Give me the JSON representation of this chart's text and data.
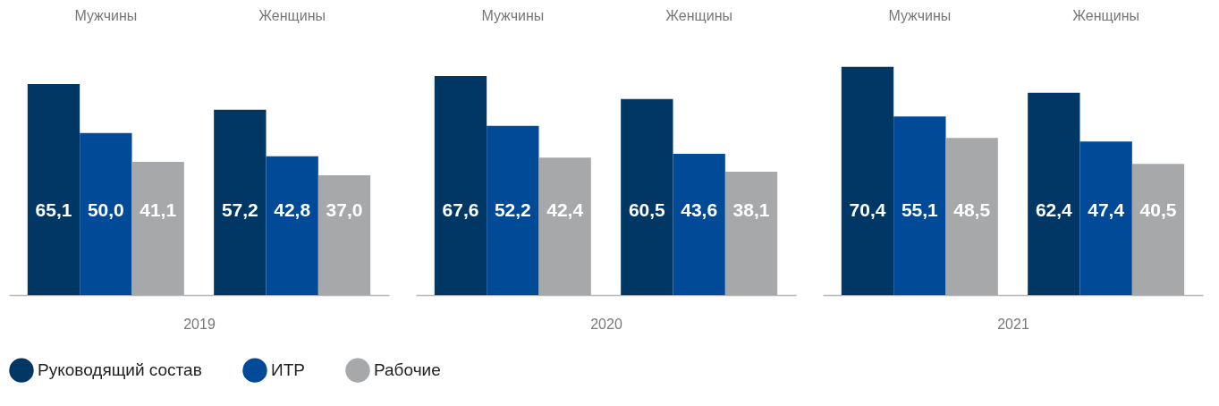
{
  "chart_data": [
    {
      "type": "bar",
      "xlabel": "2019",
      "categories": [
        "Мужчины",
        "Женщины"
      ],
      "legend": "bottom",
      "series": [
        {
          "name": "Руководящий состав",
          "color": "#003764",
          "values": [
            65.1,
            57.2
          ],
          "value_labels": [
            "65,1",
            "57,2"
          ]
        },
        {
          "name": "ИТР",
          "color": "#004a98",
          "values": [
            50.0,
            42.8
          ],
          "value_labels": [
            "50,0",
            "42,8"
          ]
        },
        {
          "name": "Рабочие",
          "color": "#a7a8aa",
          "values": [
            41.1,
            37.0
          ],
          "value_labels": [
            "41,1",
            "37,0"
          ]
        }
      ]
    },
    {
      "type": "bar",
      "xlabel": "2020",
      "categories": [
        "Мужчины",
        "Женщины"
      ],
      "series": [
        {
          "color": "#003764",
          "values": [
            67.6,
            60.5
          ],
          "value_labels": [
            "67,6",
            "60,5"
          ]
        },
        {
          "color": "#004a98",
          "values": [
            52.2,
            43.6
          ],
          "value_labels": [
            "52,2",
            "43,6"
          ]
        },
        {
          "color": "#a7a8aa",
          "values": [
            42.4,
            38.1
          ],
          "value_labels": [
            "42,4",
            "38,1"
          ]
        }
      ]
    },
    {
      "type": "bar",
      "xlabel": "2021",
      "categories": [
        "Мужчины",
        "Женщины"
      ],
      "series": [
        {
          "color": "#003764",
          "values": [
            70.4,
            62.4
          ],
          "value_labels": [
            "70,4",
            "62,4"
          ]
        },
        {
          "color": "#004a98",
          "values": [
            55.1,
            47.4
          ],
          "value_labels": [
            "55,1",
            "47,4"
          ]
        },
        {
          "color": "#a7a8aa",
          "values": [
            48.5,
            40.5
          ],
          "value_labels": [
            "48,5",
            "40,5"
          ]
        }
      ]
    }
  ]
}
